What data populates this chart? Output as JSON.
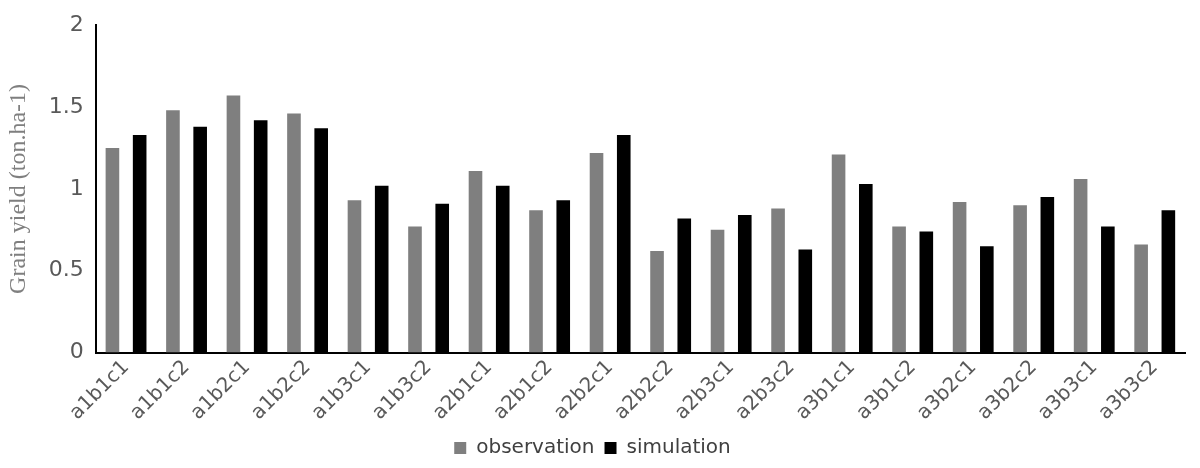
{
  "chart_data": {
    "type": "bar",
    "ylabel": "Grain yield (ton.ha-1)",
    "categories": [
      "a1b1c1",
      "a1b1c2",
      "a1b2c1",
      "a1b2c2",
      "a1b3c1",
      "a1b3c2",
      "a2b1c1",
      "a2b1c2",
      "a2b2c1",
      "a2b2c2",
      "a2b3c1",
      "a2b3c2",
      "a3b1c1",
      "a3b1c2",
      "a3b2c1",
      "a3b2c2",
      "a3b3c1",
      "a3b3c2"
    ],
    "series": [
      {
        "name": "observation",
        "color": "#7f7f7f",
        "values": [
          1.25,
          1.48,
          1.57,
          1.46,
          0.93,
          0.77,
          1.11,
          0.87,
          1.22,
          0.62,
          0.75,
          0.88,
          1.21,
          0.77,
          0.92,
          0.9,
          1.06,
          0.66
        ]
      },
      {
        "name": "simulation",
        "color": "#000000",
        "values": [
          1.33,
          1.38,
          1.42,
          1.37,
          1.02,
          0.91,
          1.02,
          0.93,
          1.33,
          0.82,
          0.84,
          0.63,
          1.03,
          0.74,
          0.65,
          0.95,
          0.77,
          0.87
        ]
      }
    ],
    "ylim": [
      0,
      2
    ],
    "yticks": [
      0,
      0.5,
      1,
      1.5,
      2
    ],
    "grid": false,
    "legend": "bottom"
  }
}
